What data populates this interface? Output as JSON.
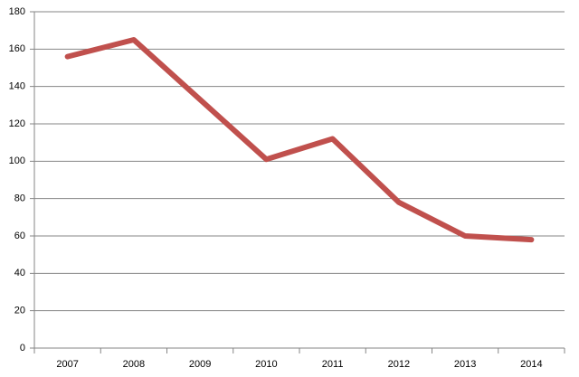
{
  "chart_data": {
    "type": "line",
    "categories": [
      "2007",
      "2008",
      "2009",
      "2010",
      "2011",
      "2012",
      "2013",
      "2014"
    ],
    "series": [
      {
        "color": "#c0504d",
        "values": [
          156,
          165,
          133,
          101,
          112,
          78,
          60,
          58
        ]
      }
    ],
    "ylim": [
      0,
      180
    ],
    "yticks": [
      0,
      20,
      40,
      60,
      80,
      100,
      120,
      140,
      160,
      180
    ],
    "grid": true
  }
}
